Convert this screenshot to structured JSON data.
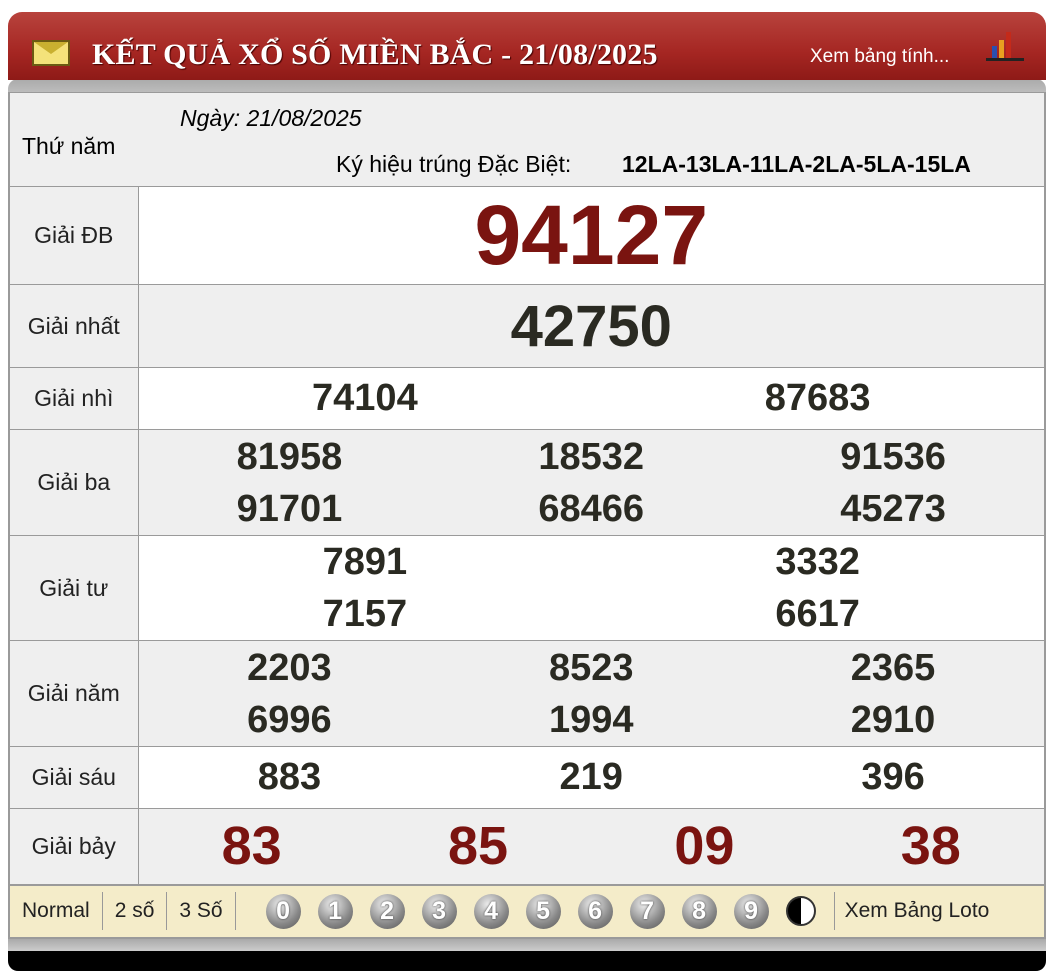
{
  "header": {
    "title": "KẾT QUẢ XỔ SỐ MIỀN BẮC - 21/08/2025",
    "link": "Xem bảng tính...",
    "icons": [
      "envelope-icon",
      "bar-chart-icon"
    ]
  },
  "info": {
    "weekday": "Thứ năm",
    "date": "Ngày: 21/08/2025",
    "code_label": "Ký hiệu trúng Đặc Biệt:",
    "code": "12LA-13LA-11LA-2LA-5LA-15LA"
  },
  "prizes": [
    {
      "label": "Giải ĐB",
      "numbers": [
        "94127"
      ]
    },
    {
      "label": "Giải nhất",
      "numbers": [
        "42750"
      ]
    },
    {
      "label": "Giải nhì",
      "numbers": [
        "74104",
        "87683"
      ]
    },
    {
      "label": "Giải ba",
      "numbers": [
        "81958",
        "18532",
        "91536",
        "91701",
        "68466",
        "45273"
      ]
    },
    {
      "label": "Giải tư",
      "numbers": [
        "7891",
        "3332",
        "7157",
        "6617"
      ]
    },
    {
      "label": "Giải năm",
      "numbers": [
        "2203",
        "8523",
        "2365",
        "6996",
        "1994",
        "2910"
      ]
    },
    {
      "label": "Giải sáu",
      "numbers": [
        "883",
        "219",
        "396"
      ]
    },
    {
      "label": "Giải bảy",
      "numbers": [
        "83",
        "85",
        "09",
        "38"
      ]
    }
  ],
  "footer": {
    "modes": [
      "Normal",
      "2 số",
      "3 Số"
    ],
    "digits": [
      "0",
      "1",
      "2",
      "3",
      "4",
      "5",
      "6",
      "7",
      "8",
      "9"
    ],
    "loto": "Xem Bảng Loto"
  },
  "colors": {
    "header": "#a52622",
    "special": "#7a1410",
    "footer": "#f4ecc9"
  }
}
